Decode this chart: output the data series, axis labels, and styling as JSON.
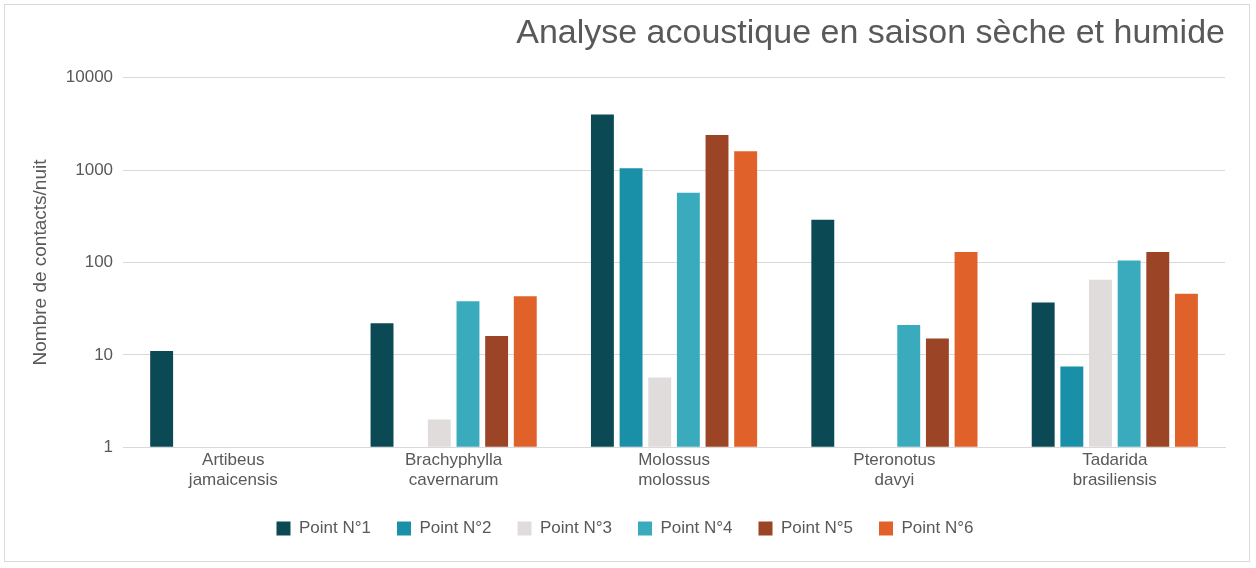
{
  "chart_data": {
    "type": "bar",
    "title": "Analyse acoustique en saison sèche et humide",
    "ylabel": "Nombre de contacts/nuit",
    "categories": [
      "Artibeus jamaicensis",
      "Brachyphylla cavernarum",
      "Molossus molossus",
      "Pteronotus davyi",
      "Tadarida brasiliensis"
    ],
    "series": [
      {
        "name": "Point N°1",
        "color": "#0b4a54",
        "values": [
          11,
          22,
          4000,
          290,
          37
        ]
      },
      {
        "name": "Point N°2",
        "color": "#1a8fa8",
        "values": [
          null,
          null,
          1050,
          null,
          7.5
        ]
      },
      {
        "name": "Point N°3",
        "color": "#e0dcdc",
        "values": [
          null,
          2,
          5.7,
          null,
          65
        ]
      },
      {
        "name": "Point N°4",
        "color": "#3aabbd",
        "values": [
          null,
          38,
          570,
          21,
          105
        ]
      },
      {
        "name": "Point N°5",
        "color": "#9b4526",
        "values": [
          null,
          16,
          2400,
          15,
          130
        ]
      },
      {
        "name": "Point N°6",
        "color": "#e0622a",
        "values": [
          null,
          43,
          1600,
          130,
          46
        ]
      }
    ],
    "log": "y",
    "ylim": [
      1,
      10000
    ],
    "yticks": [
      1,
      10,
      100,
      1000,
      10000
    ],
    "grid": "y",
    "legend": "bottom"
  }
}
